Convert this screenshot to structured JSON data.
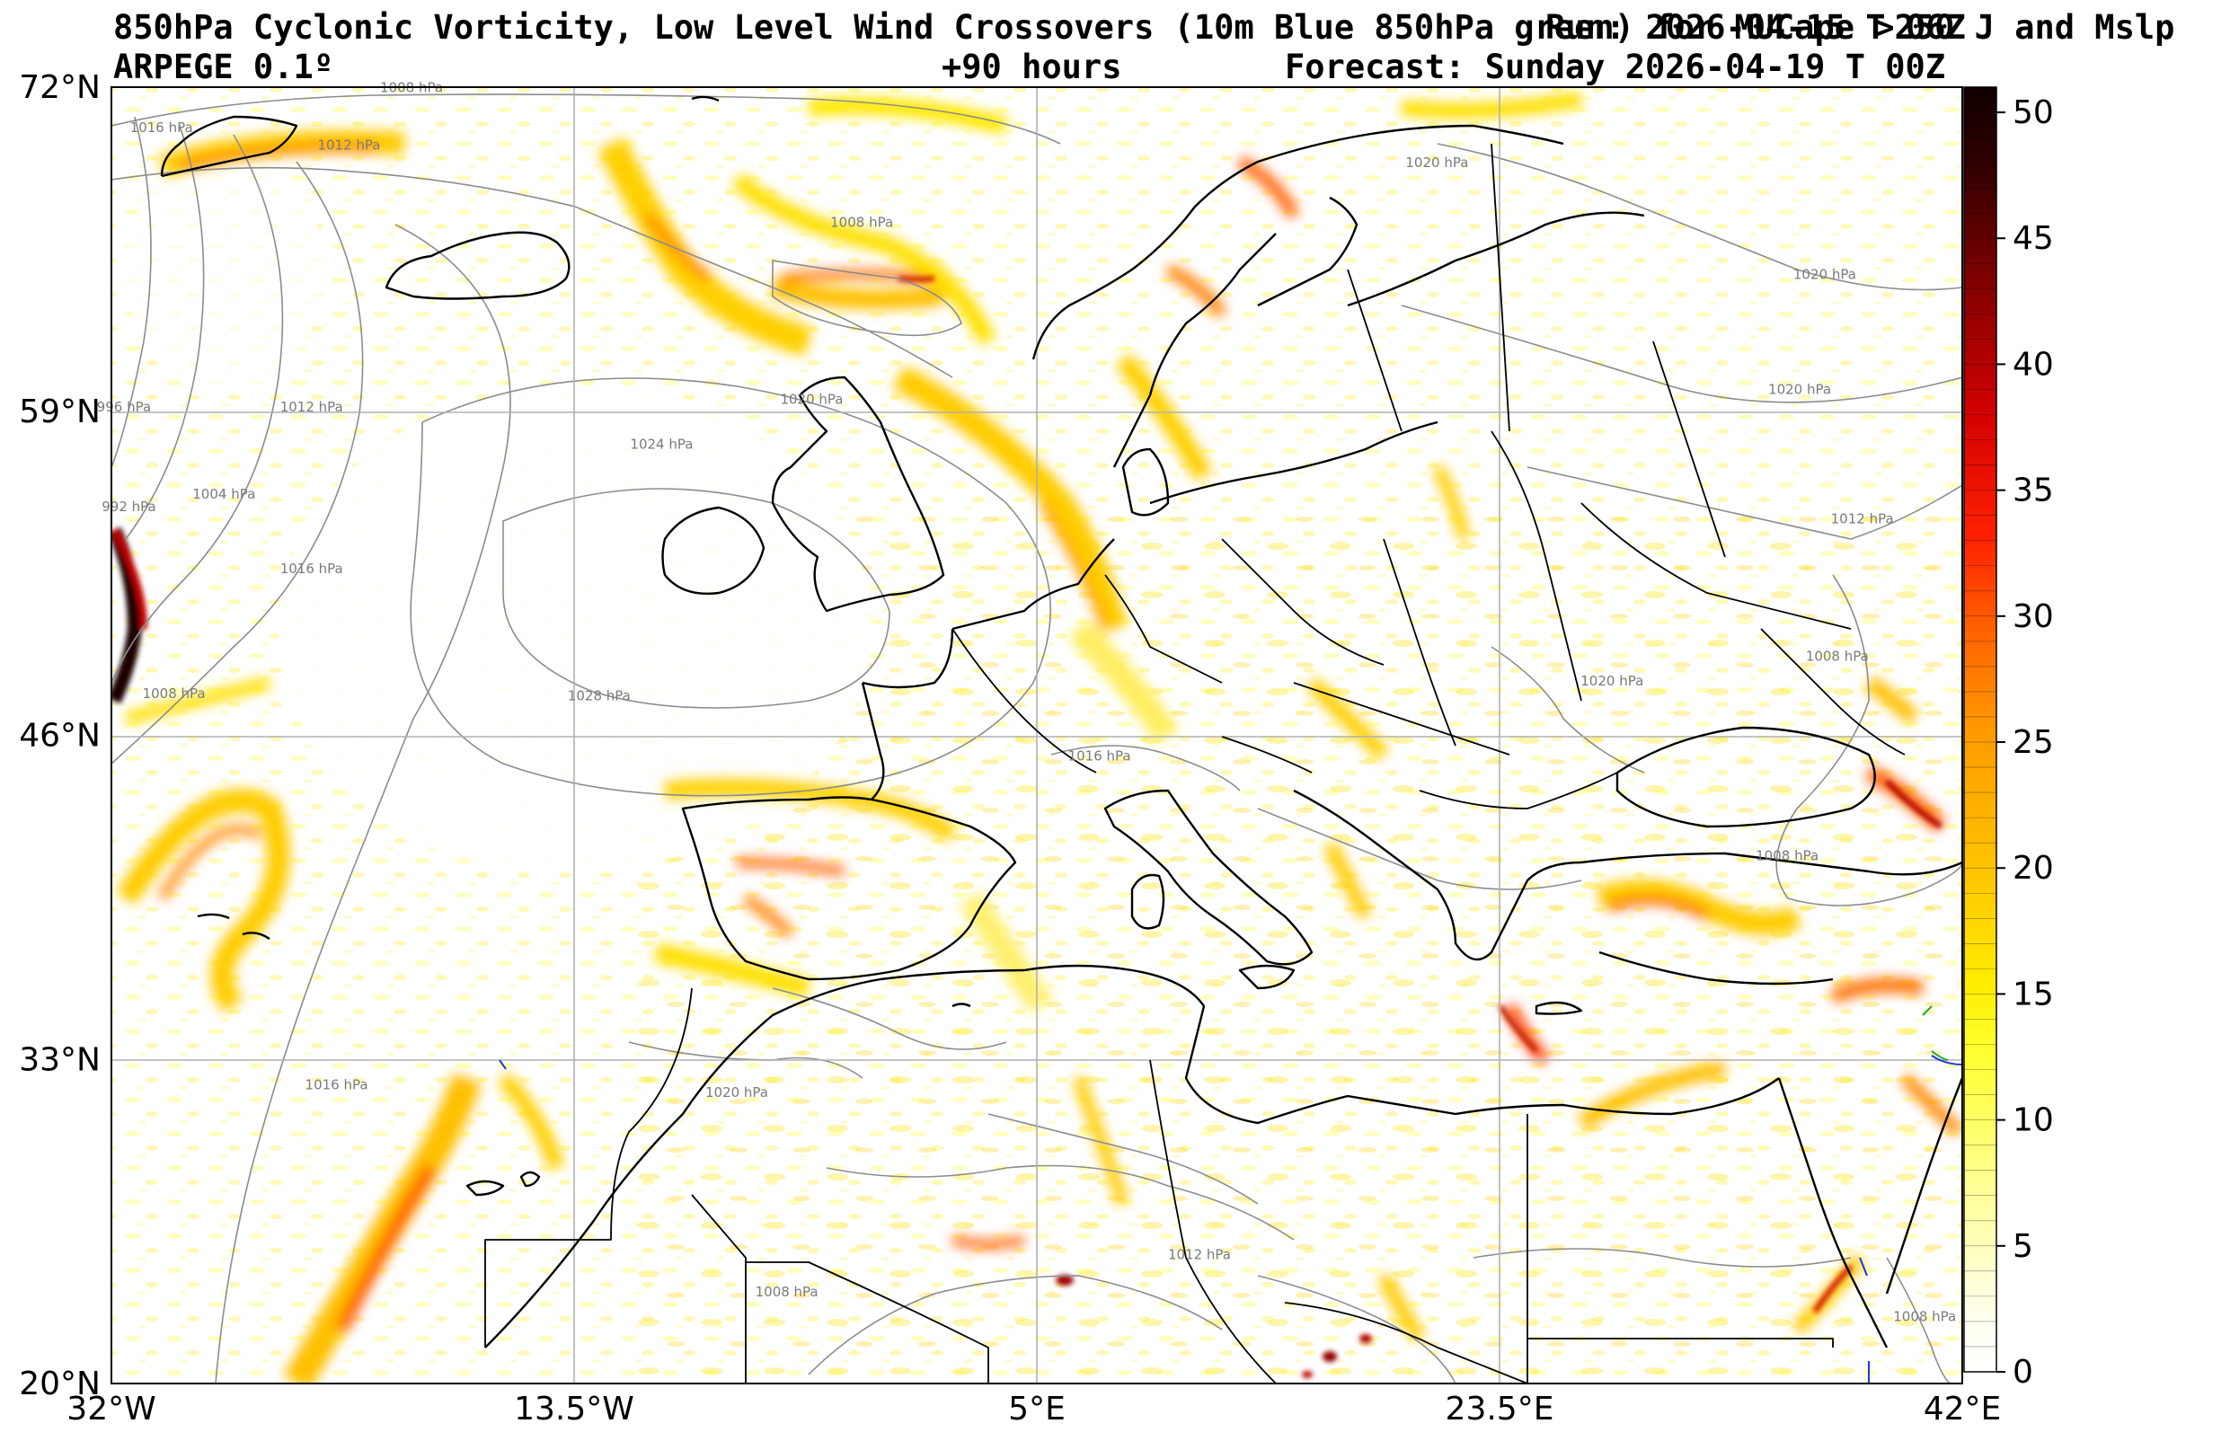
{
  "header": {
    "title": "850hPa Cyclonic Vorticity, Low Level Wind Crossovers (10m Blue 850hPa green) for MUCape >250 J and Mslp",
    "run": "Run: 2026-04-15 T 06Z",
    "model": "ARPEGE 0.1º",
    "lead_time": "+90 hours",
    "valid_time": "Forecast: Sunday 2026-04-19 T 00Z"
  },
  "map": {
    "projection": "equirectangular",
    "lon_range": [
      -32,
      42
    ],
    "lat_range": [
      20,
      72
    ],
    "lon_ticks": [
      {
        "value": -32,
        "label": "32°W"
      },
      {
        "value": -13.5,
        "label": "13.5°W"
      },
      {
        "value": 5,
        "label": "5°E"
      },
      {
        "value": 23.5,
        "label": "23.5°E"
      },
      {
        "value": 42,
        "label": "42°E"
      }
    ],
    "lat_ticks": [
      {
        "value": 72,
        "label": "72°N"
      },
      {
        "value": 59,
        "label": "59°N"
      },
      {
        "value": 46,
        "label": "46°N"
      },
      {
        "value": 33,
        "label": "33°N"
      },
      {
        "value": 20,
        "label": "20°N"
      }
    ],
    "grid": true,
    "isobar_labels": [
      {
        "text": "1008 hPa",
        "lon": -20,
        "lat": 71.8
      },
      {
        "text": "1016 hPa",
        "lon": -30,
        "lat": 70.2
      },
      {
        "text": "1012 hPa",
        "lon": -22.5,
        "lat": 69.5
      },
      {
        "text": "1008 hPa",
        "lon": -2,
        "lat": 66.4
      },
      {
        "text": "1020 hPa",
        "lon": -4,
        "lat": 59.3
      },
      {
        "text": "1024 hPa",
        "lon": -10,
        "lat": 57.5
      },
      {
        "text": "1004 hPa",
        "lon": -27.5,
        "lat": 55.5
      },
      {
        "text": "1012 hPa",
        "lon": -24,
        "lat": 59
      },
      {
        "text": "1016 hPa",
        "lon": -24,
        "lat": 52.5
      },
      {
        "text": "996 hPa",
        "lon": -31.5,
        "lat": 59
      },
      {
        "text": "992 hPa",
        "lon": -31.3,
        "lat": 55
      },
      {
        "text": "1008 hPa",
        "lon": -29.5,
        "lat": 47.5
      },
      {
        "text": "1028 hPa",
        "lon": -12.5,
        "lat": 47.4
      },
      {
        "text": "1020 hPa",
        "lon": 21,
        "lat": 68.8
      },
      {
        "text": "1020 hPa",
        "lon": 28,
        "lat": 48
      },
      {
        "text": "1020 hPa",
        "lon": 35.5,
        "lat": 59.7
      },
      {
        "text": "1012 hPa",
        "lon": 38,
        "lat": 54.5
      },
      {
        "text": "1020 hPa",
        "lon": 36.5,
        "lat": 64.3
      },
      {
        "text": "1008 hPa",
        "lon": 37,
        "lat": 49
      },
      {
        "text": "1008 hPa",
        "lon": 35,
        "lat": 41
      },
      {
        "text": "1016 hPa",
        "lon": 7.5,
        "lat": 45
      },
      {
        "text": "1020 hPa",
        "lon": -7,
        "lat": 31.5
      },
      {
        "text": "1016 hPa",
        "lon": -23,
        "lat": 31.8
      },
      {
        "text": "1008 hPa",
        "lon": -5,
        "lat": 23.5
      },
      {
        "text": "1012 hPa",
        "lon": 11.5,
        "lat": 25
      },
      {
        "text": "1008 hPa",
        "lon": 40.5,
        "lat": 22.5
      }
    ]
  },
  "colorbar": {
    "min": 0,
    "max": 51,
    "ticks": [
      "0",
      "5",
      "10",
      "15",
      "20",
      "25",
      "30",
      "35",
      "40",
      "45",
      "50"
    ],
    "colors": [
      "#ffffff",
      "#ffffa0",
      "#ffff40",
      "#ffee00",
      "#ffc400",
      "#ff9c00",
      "#ff6a00",
      "#ff2a00",
      "#d40000",
      "#8a0000",
      "#400000",
      "#100000"
    ]
  },
  "colors": {
    "coast": "#000000",
    "isobar": "#8c8c8c",
    "grid": "#b0b0b0",
    "wind_10m": "#2233dd",
    "wind_850": "#22aa33"
  }
}
